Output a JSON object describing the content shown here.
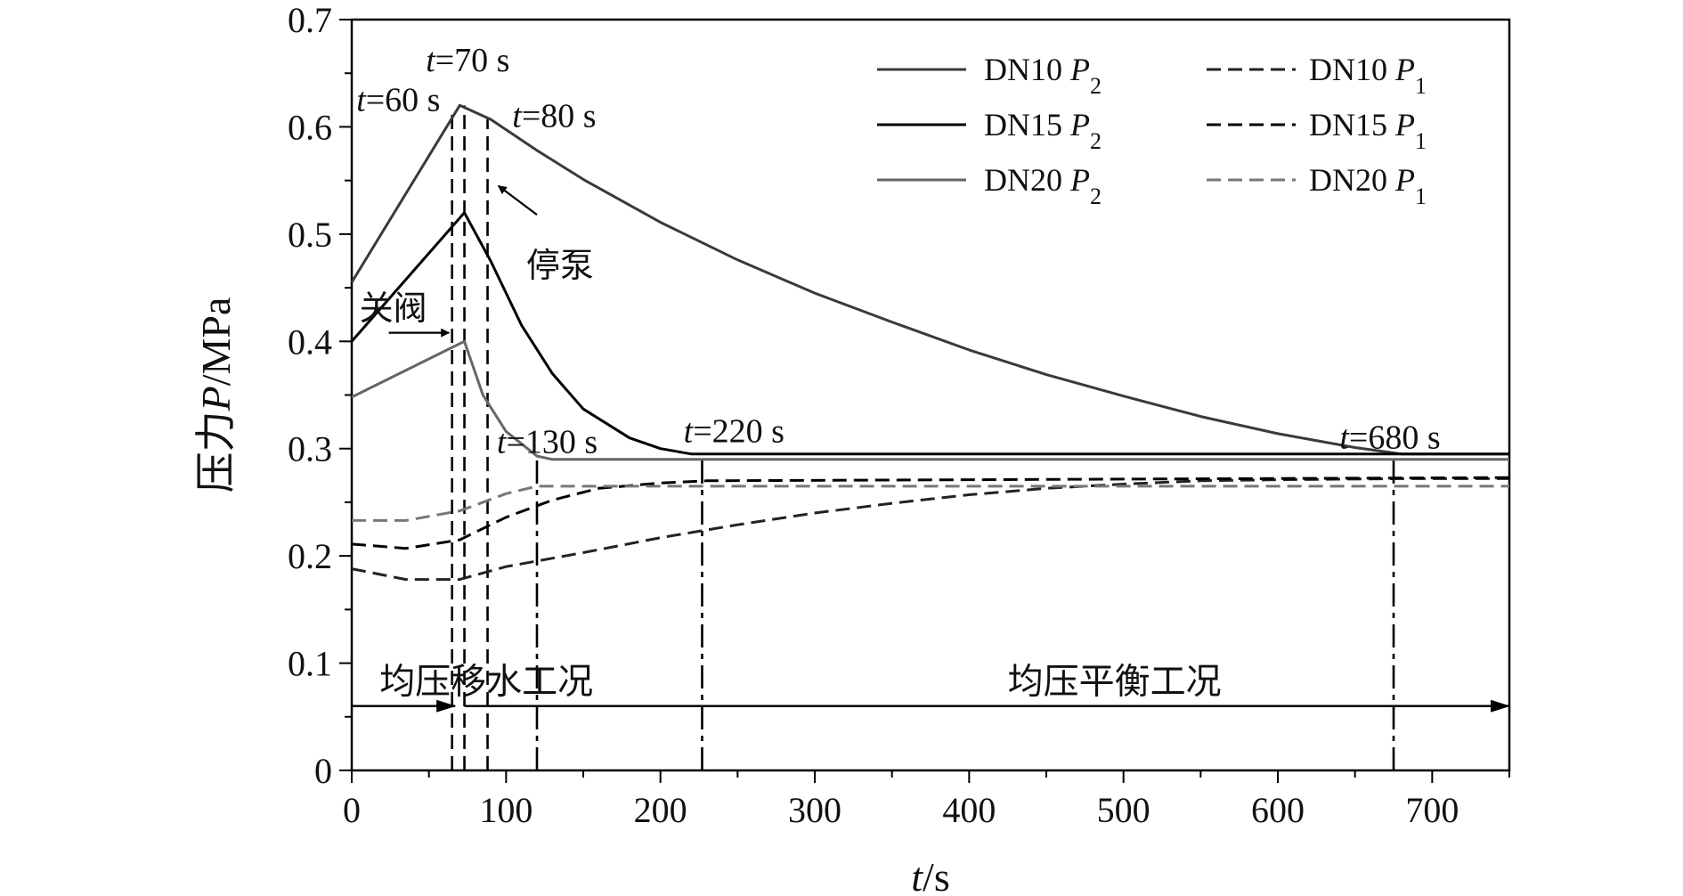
{
  "chart_data": {
    "type": "line",
    "x_axis": {
      "label_italic": "t",
      "label_rest": "/s",
      "range": [
        0,
        750
      ],
      "ticks": [
        0,
        100,
        200,
        300,
        400,
        500,
        600,
        700
      ],
      "minor_step": 50
    },
    "y_axis": {
      "label_cn": "压力",
      "label_italic": "P",
      "label_rest": "/MPa",
      "range": [
        0,
        0.7
      ],
      "ticks": [
        0,
        0.1,
        0.2,
        0.3,
        0.4,
        0.5,
        0.6,
        0.7
      ],
      "minor_step": 0.05
    },
    "grid": false,
    "legend_position": "top-right",
    "series": [
      {
        "name": "DN10 P2",
        "label_pre": "DN10 ",
        "label_var": "P",
        "label_sub": "2",
        "style": "solid",
        "color": "#3a3a3a",
        "points": [
          [
            0,
            0.455
          ],
          [
            70,
            0.62
          ],
          [
            90,
            0.607
          ],
          [
            120,
            0.578
          ],
          [
            150,
            0.551
          ],
          [
            200,
            0.511
          ],
          [
            250,
            0.476
          ],
          [
            300,
            0.445
          ],
          [
            350,
            0.418
          ],
          [
            400,
            0.392
          ],
          [
            450,
            0.369
          ],
          [
            500,
            0.349
          ],
          [
            550,
            0.33
          ],
          [
            600,
            0.314
          ],
          [
            650,
            0.301
          ],
          [
            680,
            0.295
          ],
          [
            750,
            0.295
          ]
        ]
      },
      {
        "name": "DN15 P2",
        "label_pre": "DN15 ",
        "label_var": "P",
        "label_sub": "2",
        "style": "solid",
        "color": "#000000",
        "points": [
          [
            0,
            0.4
          ],
          [
            73,
            0.52
          ],
          [
            90,
            0.475
          ],
          [
            110,
            0.415
          ],
          [
            130,
            0.37
          ],
          [
            150,
            0.337
          ],
          [
            180,
            0.31
          ],
          [
            200,
            0.3
          ],
          [
            220,
            0.295
          ],
          [
            750,
            0.295
          ]
        ]
      },
      {
        "name": "DN20 P2",
        "label_pre": "DN20 ",
        "label_var": "P",
        "label_sub": "2",
        "style": "solid",
        "color": "#666666",
        "points": [
          [
            0,
            0.348
          ],
          [
            73,
            0.4
          ],
          [
            85,
            0.35
          ],
          [
            100,
            0.316
          ],
          [
            120,
            0.293
          ],
          [
            130,
            0.29
          ],
          [
            750,
            0.29
          ]
        ]
      },
      {
        "name": "DN10 P1",
        "label_pre": "DN10 ",
        "label_var": "P",
        "label_sub": "1",
        "style": "dashed",
        "color": "#222222",
        "points": [
          [
            0,
            0.188
          ],
          [
            35,
            0.178
          ],
          [
            70,
            0.178
          ],
          [
            100,
            0.19
          ],
          [
            150,
            0.203
          ],
          [
            200,
            0.217
          ],
          [
            250,
            0.229
          ],
          [
            300,
            0.24
          ],
          [
            350,
            0.249
          ],
          [
            400,
            0.257
          ],
          [
            450,
            0.263
          ],
          [
            500,
            0.267
          ],
          [
            550,
            0.27
          ],
          [
            600,
            0.271
          ],
          [
            680,
            0.272
          ],
          [
            750,
            0.272
          ]
        ]
      },
      {
        "name": "DN15 P1",
        "label_pre": "DN15 ",
        "label_var": "P",
        "label_sub": "1",
        "style": "dashed",
        "color": "#000000",
        "points": [
          [
            0,
            0.211
          ],
          [
            35,
            0.207
          ],
          [
            70,
            0.215
          ],
          [
            100,
            0.236
          ],
          [
            130,
            0.252
          ],
          [
            160,
            0.263
          ],
          [
            200,
            0.268
          ],
          [
            230,
            0.27
          ],
          [
            750,
            0.273
          ]
        ]
      },
      {
        "name": "DN20 P1",
        "label_pre": "DN20 ",
        "label_var": "P",
        "label_sub": "1",
        "style": "dashed",
        "color": "#777777",
        "points": [
          [
            0,
            0.233
          ],
          [
            35,
            0.233
          ],
          [
            70,
            0.242
          ],
          [
            100,
            0.258
          ],
          [
            120,
            0.265
          ],
          [
            750,
            0.265
          ]
        ]
      }
    ],
    "vlines": [
      {
        "x": 65,
        "top": 0.615,
        "style": "dashed"
      },
      {
        "x": 73,
        "top": 0.62,
        "style": "dashed"
      },
      {
        "x": 88,
        "top": 0.607,
        "style": "dashed"
      },
      {
        "x": 120,
        "top": 0.29,
        "style": "dashdot"
      },
      {
        "x": 227,
        "top": 0.295,
        "style": "dashdot"
      },
      {
        "x": 675,
        "top": 0.295,
        "style": "dashdot"
      }
    ],
    "annotations": [
      {
        "italic": "t",
        "rest": "=60 s",
        "x": 3,
        "y": 0.615
      },
      {
        "italic": "t",
        "rest": "=70 s",
        "x": 48,
        "y": 0.652
      },
      {
        "italic": "t",
        "rest": "=80 s",
        "x": 104,
        "y": 0.6
      },
      {
        "italic": "t",
        "rest": "=130 s",
        "x": 94,
        "y": 0.296
      },
      {
        "italic": "t",
        "rest": "=220 s",
        "x": 215,
        "y": 0.306
      },
      {
        "italic": "t",
        "rest": "=680 s",
        "x": 640,
        "y": 0.3
      }
    ],
    "callouts": [
      {
        "text": "关阀",
        "text_x": 5,
        "text_y": 0.42,
        "arrow_from": [
          24,
          0.408
        ],
        "arrow_to": [
          63,
          0.408
        ]
      },
      {
        "text": "停泵",
        "text_x": 113,
        "text_y": 0.46,
        "arrow_from": [
          120,
          0.518
        ],
        "arrow_to": [
          95,
          0.545
        ]
      }
    ],
    "regions": [
      {
        "label": "均压移水工况",
        "text_x": 18,
        "text_y": 0.072
      },
      {
        "label": "均压平衡工况",
        "text_x": 425,
        "text_y": 0.072
      }
    ],
    "region_arrows": [
      {
        "from": 0,
        "to": 67,
        "y": 0.06
      },
      {
        "from": 73,
        "to": 750,
        "y": 0.06
      }
    ]
  }
}
